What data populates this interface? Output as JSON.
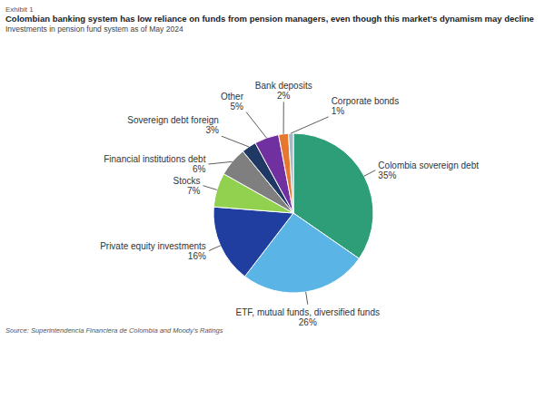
{
  "chart_data": {
    "type": "pie",
    "exhibit": "Exhibit 1",
    "title": "Colombian banking system has low reliance on funds from pension managers, even though this market's dynamism may decline",
    "subtitle": "Investments in pension fund system as of May 2024",
    "source": "Source: Superintendencia Financiera de Colombia and Moody's Ratings",
    "categories": [
      "Colombia sovereign debt",
      "ETF, mutual funds, diversified funds",
      "Private equity investments",
      "Stocks",
      "Financial institutions debt",
      "Sovereign debt foreign",
      "Other",
      "Bank deposits",
      "Corporate bonds"
    ],
    "values": [
      35,
      26,
      16,
      7,
      6,
      3,
      5,
      2,
      1
    ],
    "value_labels": [
      "35%",
      "26%",
      "16%",
      "7%",
      "6%",
      "3%",
      "5%",
      "2%",
      "1%"
    ],
    "colors": [
      "#2e9e78",
      "#5ab4e6",
      "#1f3ea0",
      "#92d050",
      "#7f7f7f",
      "#1f3864",
      "#7030a0",
      "#e6772e",
      "#a6b8c8"
    ],
    "data_labels": true
  }
}
